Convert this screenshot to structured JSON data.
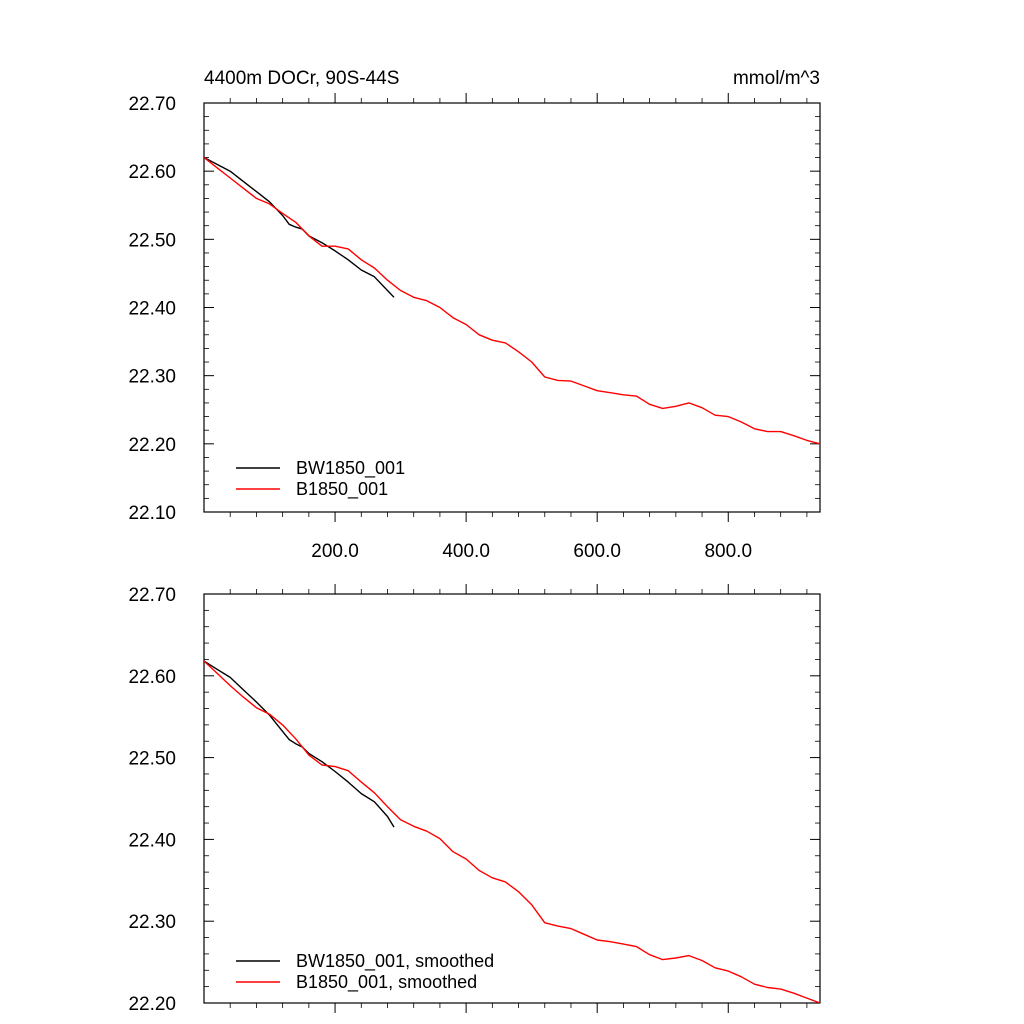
{
  "chart_data": [
    {
      "type": "line",
      "title_left": "4400m DOCr, 90S-44S",
      "title_right": "mmol/m^3",
      "xlim": [
        0,
        940
      ],
      "ylim": [
        22.1,
        22.7
      ],
      "x_ticks": [
        200,
        400,
        600,
        800
      ],
      "x_tick_labels": [
        "200.0",
        "400.0",
        "600.0",
        "800.0"
      ],
      "y_ticks": [
        22.1,
        22.2,
        22.3,
        22.4,
        22.5,
        22.6,
        22.7
      ],
      "y_tick_labels": [
        "22.10",
        "22.20",
        "22.30",
        "22.40",
        "22.50",
        "22.60",
        "22.70"
      ],
      "legend_position": "bottom-left",
      "series": [
        {
          "name": "BW1850_001",
          "color": "#000000",
          "x": [
            0,
            20,
            40,
            60,
            80,
            100,
            120,
            130,
            140,
            150,
            160,
            180,
            200,
            220,
            240,
            260,
            280,
            290
          ],
          "y": [
            22.62,
            22.61,
            22.6,
            22.585,
            22.57,
            22.555,
            22.535,
            22.522,
            22.518,
            22.515,
            22.505,
            22.495,
            22.483,
            22.47,
            22.455,
            22.445,
            22.425,
            22.415
          ]
        },
        {
          "name": "B1850_001",
          "color": "#ff0000",
          "x": [
            0,
            20,
            40,
            60,
            80,
            100,
            120,
            140,
            160,
            180,
            200,
            220,
            240,
            260,
            280,
            300,
            320,
            340,
            360,
            380,
            400,
            420,
            440,
            460,
            480,
            500,
            520,
            540,
            560,
            580,
            600,
            620,
            640,
            660,
            680,
            700,
            720,
            740,
            760,
            780,
            800,
            820,
            840,
            860,
            880,
            900,
            920,
            940
          ],
          "y": [
            22.62,
            22.605,
            22.59,
            22.575,
            22.56,
            22.552,
            22.538,
            22.525,
            22.505,
            22.49,
            22.49,
            22.486,
            22.47,
            22.458,
            22.44,
            22.425,
            22.415,
            22.41,
            22.4,
            22.385,
            22.375,
            22.36,
            22.352,
            22.348,
            22.335,
            22.32,
            22.298,
            22.293,
            22.292,
            22.285,
            22.278,
            22.275,
            22.272,
            22.27,
            22.258,
            22.252,
            22.255,
            22.26,
            22.253,
            22.242,
            22.24,
            22.232,
            22.222,
            22.218,
            22.218,
            22.212,
            22.205,
            22.2
          ]
        }
      ]
    },
    {
      "type": "line",
      "xlim": [
        0,
        940
      ],
      "ylim": [
        22.2,
        22.7
      ],
      "y_ticks": [
        22.2,
        22.3,
        22.4,
        22.5,
        22.6,
        22.7
      ],
      "y_tick_labels": [
        "22.20",
        "22.30",
        "22.40",
        "22.50",
        "22.60",
        "22.70"
      ],
      "legend_position": "bottom-left",
      "series": [
        {
          "name": "BW1850_001, smoothed",
          "color": "#000000",
          "x": [
            0,
            20,
            40,
            60,
            80,
            100,
            120,
            130,
            140,
            150,
            160,
            180,
            200,
            220,
            240,
            260,
            280,
            290
          ],
          "y": [
            22.618,
            22.608,
            22.598,
            22.583,
            22.568,
            22.552,
            22.532,
            22.522,
            22.517,
            22.513,
            22.505,
            22.495,
            22.483,
            22.47,
            22.456,
            22.446,
            22.428,
            22.415
          ]
        },
        {
          "name": "B1850_001, smoothed",
          "color": "#ff0000",
          "x": [
            0,
            20,
            40,
            60,
            80,
            100,
            120,
            140,
            160,
            180,
            200,
            220,
            240,
            260,
            280,
            300,
            320,
            340,
            360,
            380,
            400,
            420,
            440,
            460,
            480,
            500,
            520,
            540,
            560,
            580,
            600,
            620,
            640,
            660,
            680,
            700,
            720,
            740,
            760,
            780,
            800,
            820,
            840,
            860,
            880,
            900,
            920,
            940
          ],
          "y": [
            22.618,
            22.603,
            22.588,
            22.574,
            22.561,
            22.553,
            22.54,
            22.523,
            22.503,
            22.491,
            22.489,
            22.484,
            22.47,
            22.457,
            22.44,
            22.424,
            22.416,
            22.41,
            22.401,
            22.385,
            22.376,
            22.362,
            22.353,
            22.348,
            22.336,
            22.32,
            22.298,
            22.294,
            22.291,
            22.284,
            22.277,
            22.275,
            22.272,
            22.269,
            22.259,
            22.253,
            22.255,
            22.258,
            22.252,
            22.243,
            22.239,
            22.232,
            22.223,
            22.219,
            22.217,
            22.212,
            22.206,
            22.2
          ]
        }
      ]
    }
  ]
}
